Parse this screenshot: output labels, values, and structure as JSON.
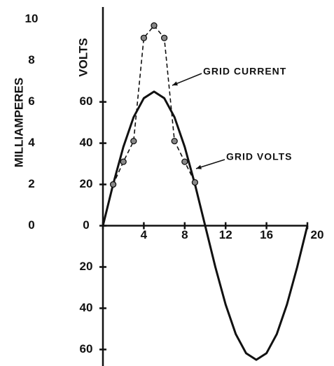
{
  "chart_data": {
    "type": "line",
    "y_label": "VOLTS",
    "y2_label": "MILLIAMPERES",
    "xlim": [
      0,
      20
    ],
    "xticks": [
      0,
      4,
      8,
      12,
      16,
      20
    ],
    "ylim": [
      -68,
      106
    ],
    "yticks": [
      {
        "value": -60,
        "label": "60"
      },
      {
        "value": -40,
        "label": "40"
      },
      {
        "value": -20,
        "label": "20"
      },
      0,
      20,
      40,
      60
    ],
    "y2lim": [
      -6.8,
      10.6
    ],
    "y2ticks": [
      0,
      2,
      4,
      6,
      8,
      10
    ],
    "series": [
      {
        "name": "GRID VOLTS",
        "color": "#111111",
        "dashed": false,
        "markers": false,
        "x": [
          0,
          1,
          2,
          3,
          4,
          5,
          6,
          7,
          8,
          9,
          10,
          11,
          12,
          13,
          14,
          15,
          16,
          17,
          18,
          19,
          20
        ],
        "values": [
          0,
          20.1,
          38.2,
          52.6,
          61.8,
          65,
          61.8,
          52.6,
          38.2,
          20.1,
          0,
          -20.1,
          -38.2,
          -52.6,
          -61.8,
          -65,
          -61.8,
          -52.6,
          -38.2,
          -20.1,
          0
        ]
      },
      {
        "name": "GRID CURRENT",
        "color": "#111111",
        "dashed": true,
        "markers": true,
        "axis": "y2",
        "x": [
          0,
          1,
          2,
          3,
          4,
          5,
          6,
          7,
          8,
          9,
          10
        ],
        "values": [
          0,
          2,
          3.1,
          4.1,
          9.1,
          9.7,
          9.1,
          4.1,
          3.1,
          2.1,
          0
        ]
      }
    ]
  }
}
